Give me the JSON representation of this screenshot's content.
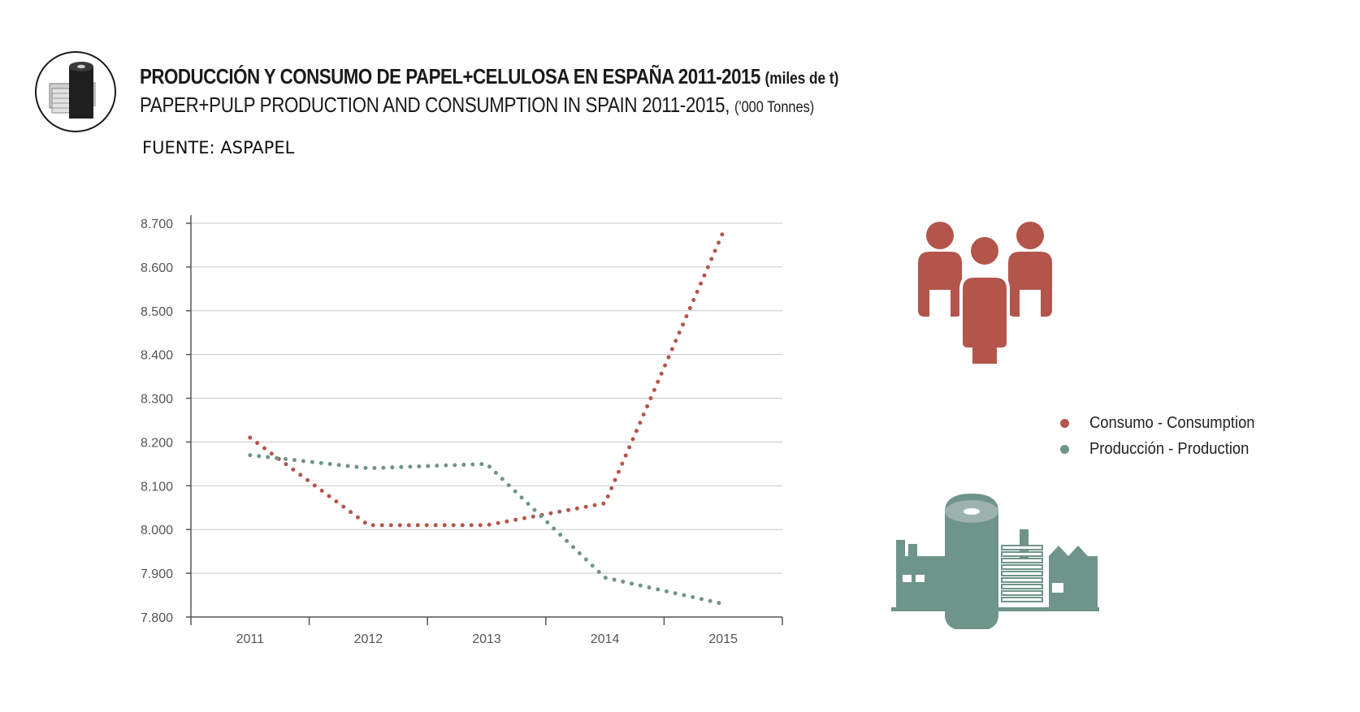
{
  "header": {
    "title_es": "PRODUCCIÓN Y CONSUMO DE PAPEL+CELULOSA EN ESPAÑA 2011-2015",
    "title_es_unit": "(miles de t)",
    "title_en": "PAPER+PULP PRODUCTION AND CONSUMPTION IN SPAIN 2011-2015,",
    "title_en_unit": "('000 Tonnes)",
    "source": "FUENTE: ASPAPEL"
  },
  "legend": {
    "consumo": {
      "bold": "Consumo",
      "sep": " - ",
      "rest": "Consumption"
    },
    "produccion": {
      "bold": "Producción",
      "sep": " - ",
      "rest": "Production"
    }
  },
  "colors": {
    "consumo": "#b3554b",
    "produccion": "#6f948a",
    "icon_people": "#b3554b",
    "icon_factory": "#6f948a",
    "grid": "#c8c8c8",
    "axis": "#555555"
  },
  "icons": {
    "logo": "paper-roll-icon",
    "people": "people-icon",
    "factory": "factory-icon"
  },
  "chart_data": {
    "type": "line",
    "title": "PRODUCCIÓN Y CONSUMO DE PAPEL+CELULOSA EN ESPAÑA 2011-2015",
    "xlabel": "",
    "ylabel": "",
    "categories": [
      "2011",
      "2012",
      "2013",
      "2014",
      "2015"
    ],
    "y_ticks": [
      "7.800",
      "7.900",
      "8.000",
      "8.100",
      "8.200",
      "8.300",
      "8.400",
      "8.500",
      "8.600",
      "8.700"
    ],
    "ylim": [
      7800,
      8700
    ],
    "grid": true,
    "line_style": "dotted",
    "legend_position": "right",
    "series": [
      {
        "name": "Consumo - Consumption",
        "values": [
          8210,
          8010,
          8010,
          8060,
          8680
        ]
      },
      {
        "name": "Producción - Production",
        "values": [
          8170,
          8140,
          8150,
          7890,
          7830
        ]
      }
    ]
  }
}
